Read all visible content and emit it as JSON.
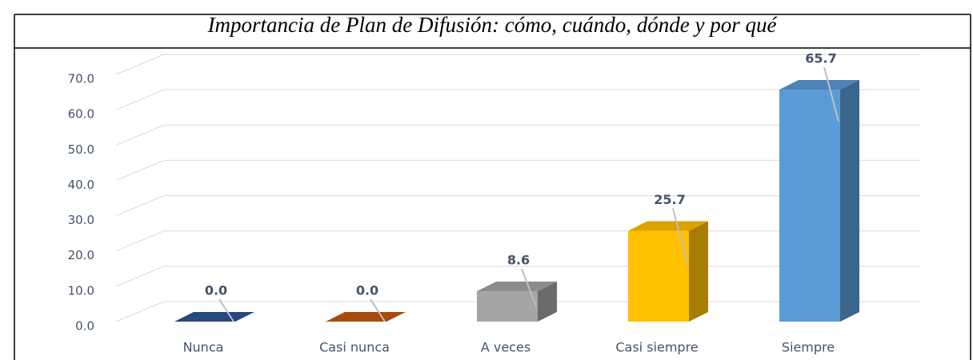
{
  "chart_data": {
    "type": "bar3d",
    "title": "Importancia de Plan de Difusión: cómo, cuándo, dónde y por qué",
    "categories": [
      "Nunca",
      "Casi nunca",
      "A veces",
      "Casi siempre",
      "Siempre"
    ],
    "values": [
      0,
      0,
      8.6,
      25.7,
      65.7
    ],
    "value_labels": [
      "0.0",
      "0.0",
      "8.6",
      "25.7",
      "65.7"
    ],
    "colors": [
      "#2f5597",
      "#c55a11",
      "#a5a5a5",
      "#ffc000",
      "#5b9bd5"
    ],
    "ylim": [
      0,
      70
    ],
    "yticks": [
      {
        "value": 0,
        "label": "0.0"
      },
      {
        "value": 10,
        "label": "10.0"
      },
      {
        "value": 20,
        "label": "20.0"
      },
      {
        "value": 30,
        "label": "30.0"
      },
      {
        "value": 40,
        "label": "40.0"
      },
      {
        "value": 50,
        "label": "50.0"
      },
      {
        "value": 60,
        "label": "60.0"
      },
      {
        "value": 70,
        "label": "70.0"
      }
    ],
    "grid": true
  }
}
